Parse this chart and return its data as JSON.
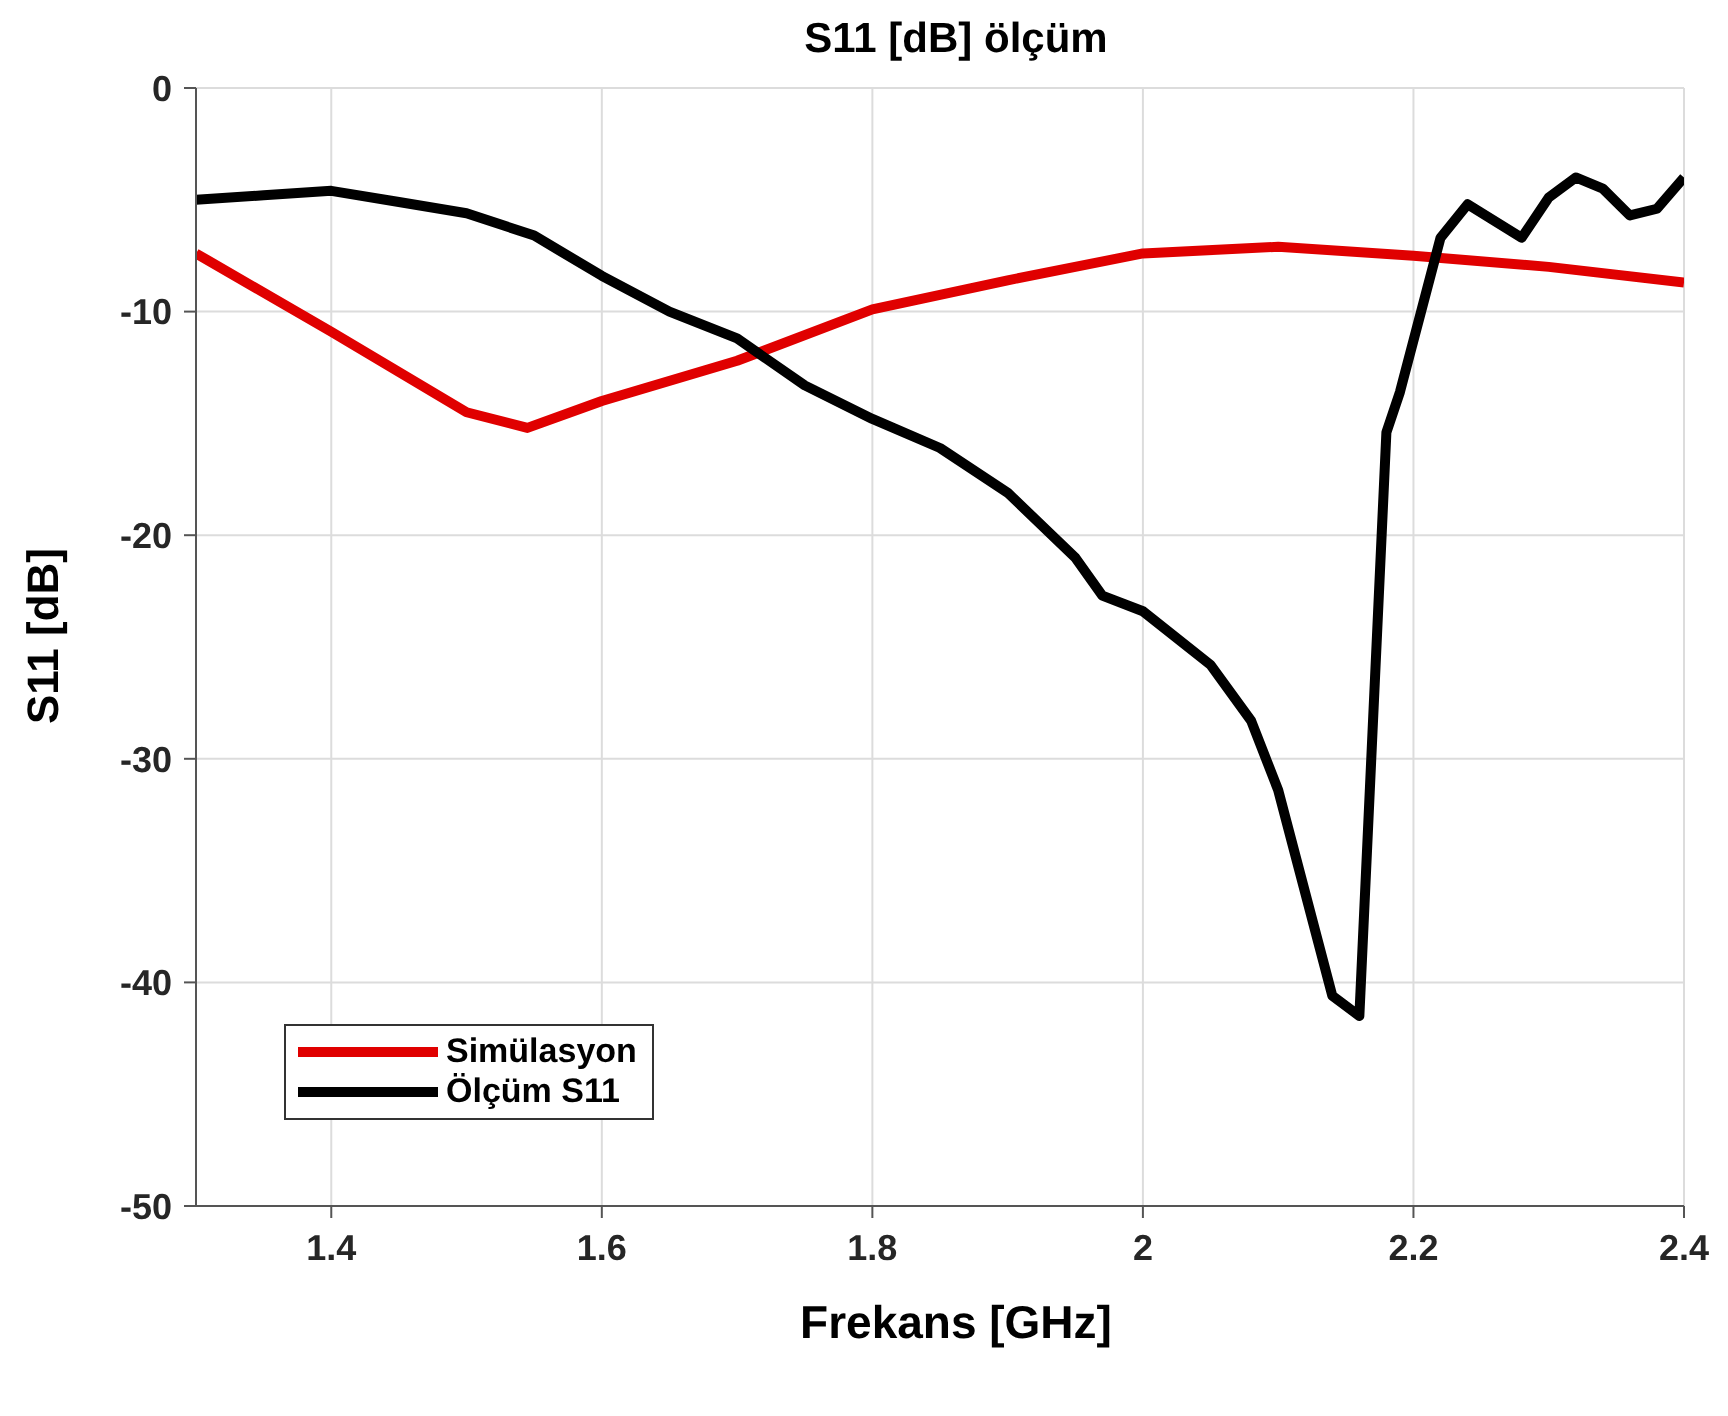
{
  "chart_data": {
    "type": "line",
    "title": "S11 [dB] ölçüm",
    "xlabel": "Frekans [GHz]",
    "ylabel": "S11 [dB]",
    "xlim": [
      1.3,
      2.4
    ],
    "xticks": [
      1.4,
      1.6,
      1.8,
      2,
      2.2,
      2.4
    ],
    "ylim": [
      -50,
      0
    ],
    "yticks": [
      -50,
      -40,
      -30,
      -20,
      -10,
      0
    ],
    "grid": true,
    "legend": "bottom left",
    "line_style": "solid",
    "marker": "none",
    "series": [
      {
        "name": "Simülasyon",
        "color": "#e00000",
        "x": [
          1.3,
          1.4,
          1.5,
          1.545,
          1.6,
          1.7,
          1.8,
          1.9,
          2.0,
          2.1,
          2.2,
          2.3,
          2.4
        ],
        "values": [
          -7.4,
          -10.9,
          -14.5,
          -15.2,
          -14.0,
          -12.2,
          -9.9,
          -8.6,
          -7.4,
          -7.1,
          -7.5,
          -8.0,
          -8.7
        ]
      },
      {
        "name": "Ölçüm S11",
        "color": "#000000",
        "x": [
          1.3,
          1.35,
          1.4,
          1.45,
          1.5,
          1.55,
          1.6,
          1.65,
          1.7,
          1.75,
          1.8,
          1.85,
          1.9,
          1.95,
          1.97,
          2.0,
          2.05,
          2.08,
          2.1,
          2.14,
          2.16,
          2.18,
          2.19,
          2.22,
          2.24,
          2.28,
          2.3,
          2.32,
          2.34,
          2.36,
          2.38,
          2.4
        ],
        "values": [
          -5.0,
          -4.8,
          -4.6,
          -5.1,
          -5.6,
          -6.6,
          -8.4,
          -10.0,
          -11.2,
          -13.3,
          -14.8,
          -16.1,
          -18.1,
          -21.0,
          -22.7,
          -23.4,
          -25.8,
          -28.3,
          -31.4,
          -40.6,
          -41.5,
          -15.4,
          -13.6,
          -6.7,
          -5.2,
          -6.7,
          -4.9,
          -4.0,
          -4.5,
          -5.7,
          -5.4,
          -4.0
        ]
      }
    ]
  }
}
